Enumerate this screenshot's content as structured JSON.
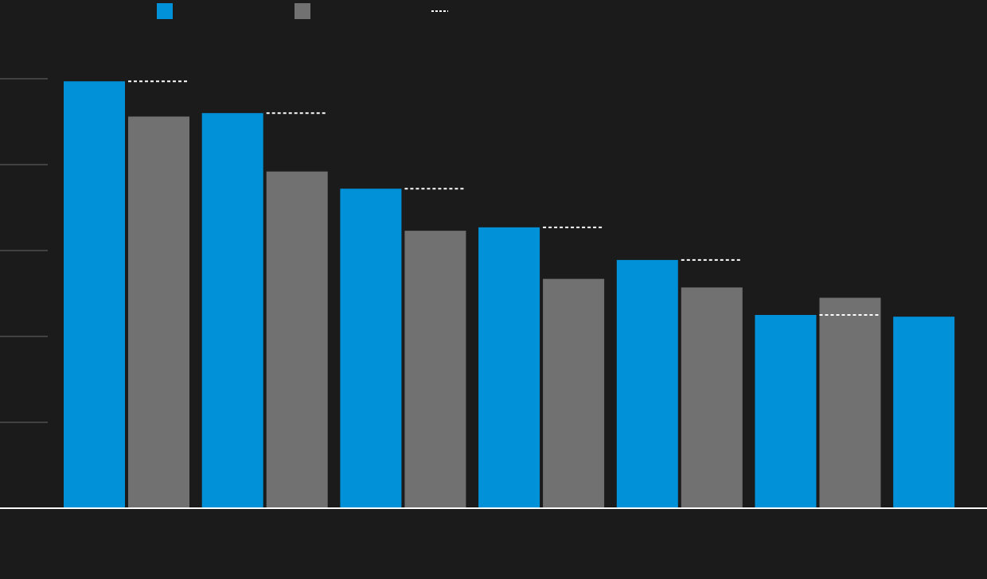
{
  "chart_data": {
    "type": "bar",
    "categories": [
      null,
      null,
      null,
      null,
      null,
      null,
      null
    ],
    "series": [
      {
        "color": "#0091d9",
        "values": [
          4.97,
          4.6,
          3.72,
          3.27,
          2.89,
          2.25,
          2.23
        ]
      },
      {
        "color": "#717171",
        "values": [
          4.56,
          3.92,
          3.23,
          2.67,
          2.57,
          2.45,
          null
        ]
      },
      {
        "color": "#ffffff",
        "style": "dashed",
        "values": [
          4.97,
          4.6,
          3.72,
          3.27,
          2.89,
          2.25,
          null
        ]
      }
    ],
    "ylim": [
      0,
      5.5
    ],
    "yticks": [
      1,
      2,
      3,
      4,
      5
    ],
    "grid": true
  }
}
